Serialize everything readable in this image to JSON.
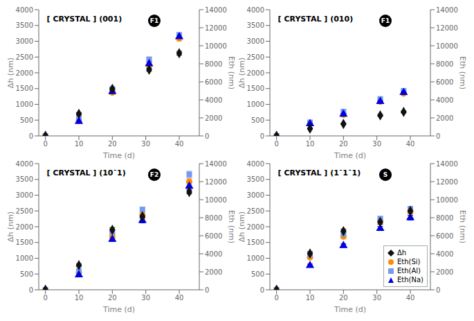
{
  "chart_data": [
    {
      "type": "scatter",
      "title": "[ CRYSTAL ] (001)",
      "annotations": [
        "F1"
      ],
      "xlabel": "Time (d)",
      "ylabel": "Δh (nm)",
      "y2label": "Eth (nm)",
      "x": [
        0,
        10,
        20,
        31,
        40
      ],
      "xlim": [
        -2,
        46
      ],
      "xticks": [
        0,
        10,
        20,
        30,
        40
      ],
      "ylim": [
        0,
        4000
      ],
      "yticks": [
        0,
        500,
        1000,
        1500,
        2000,
        2500,
        3000,
        3500,
        4000
      ],
      "y2lim": [
        0,
        14000
      ],
      "y2ticks": [
        0,
        2000,
        4000,
        6000,
        8000,
        10000,
        12000,
        14000
      ],
      "grid": false,
      "series": [
        {
          "name": "Δh",
          "color": "#111111",
          "marker": "diamond",
          "values": [
            0,
            700,
            1490,
            2100,
            2620
          ],
          "errors": [
            0,
            40,
            40,
            50,
            60
          ]
        },
        {
          "name": "Eth(Si)",
          "color": "#FF8C00",
          "marker": "circle",
          "axis": "y2",
          "values": [
            0,
            1700,
            4800,
            7800,
            10800
          ],
          "errors": [
            0,
            100,
            150,
            200,
            250
          ]
        },
        {
          "name": "Eth(Al)",
          "color": "#7799EE",
          "marker": "square",
          "axis": "y2",
          "values": [
            0,
            1950,
            5200,
            8500,
            11200
          ],
          "errors": [
            0,
            100,
            180,
            200,
            250
          ]
        },
        {
          "name": "Eth(Na)",
          "color": "#0000DD",
          "marker": "triangle",
          "axis": "y2",
          "values": [
            0,
            1600,
            4900,
            8000,
            11000
          ],
          "errors": [
            0,
            100,
            160,
            200,
            280
          ]
        }
      ]
    },
    {
      "type": "scatter",
      "title": "[ CRYSTAL ] (010)",
      "annotations": [
        "F1"
      ],
      "xlabel": "Time (d)",
      "ylabel": "Δh (nm)",
      "y2label": "Eth (nm)",
      "x": [
        0,
        10,
        20,
        31,
        38
      ],
      "xlim": [
        -2,
        46
      ],
      "xticks": [
        0,
        10,
        20,
        30,
        40
      ],
      "ylim": [
        0,
        4000
      ],
      "yticks": [
        0,
        500,
        1000,
        1500,
        2000,
        2500,
        3000,
        3500,
        4000
      ],
      "y2lim": [
        0,
        14000
      ],
      "y2ticks": [
        0,
        2000,
        4000,
        6000,
        8000,
        10000,
        12000,
        14000
      ],
      "grid": false,
      "series": [
        {
          "name": "Δh",
          "color": "#111111",
          "marker": "diamond",
          "values": [
            0,
            230,
            380,
            650,
            760
          ],
          "errors": [
            0,
            20,
            20,
            30,
            30
          ]
        },
        {
          "name": "Eth(Si)",
          "color": "#FF8C00",
          "marker": "circle",
          "axis": "y2",
          "values": [
            0,
            1350,
            2350,
            3800,
            4700
          ],
          "errors": [
            0,
            60,
            100,
            120,
            140
          ]
        },
        {
          "name": "Eth(Al)",
          "color": "#7799EE",
          "marker": "square",
          "axis": "y2",
          "values": [
            0,
            1500,
            2700,
            4100,
            5000
          ],
          "errors": [
            0,
            60,
            120,
            130,
            170
          ]
        },
        {
          "name": "Eth(Na)",
          "color": "#0000DD",
          "marker": "triangle",
          "axis": "y2",
          "values": [
            0,
            1350,
            2400,
            3800,
            4800
          ],
          "errors": [
            0,
            60,
            100,
            120,
            160
          ]
        }
      ]
    },
    {
      "type": "scatter",
      "title": "[ CRYSTAL ] (10¯1)",
      "annotations": [
        "F2"
      ],
      "xlabel": "Time (d)",
      "ylabel": "Δh (nm)",
      "y2label": "Eth (nm)",
      "x": [
        0,
        10,
        20,
        29,
        43
      ],
      "xlim": [
        -2,
        46
      ],
      "xticks": [
        0,
        10,
        20,
        30,
        40
      ],
      "ylim": [
        0,
        4000
      ],
      "yticks": [
        0,
        500,
        1000,
        1500,
        2000,
        2500,
        3000,
        3500,
        4000
      ],
      "y2lim": [
        0,
        14000
      ],
      "y2ticks": [
        0,
        2000,
        4000,
        6000,
        8000,
        10000,
        12000,
        14000
      ],
      "grid": false,
      "series": [
        {
          "name": "Δh",
          "color": "#111111",
          "marker": "diamond",
          "values": [
            0,
            780,
            1900,
            2330,
            3100
          ],
          "errors": [
            0,
            40,
            70,
            60,
            60
          ]
        },
        {
          "name": "Eth(Si)",
          "color": "#FF8C00",
          "marker": "circle",
          "axis": "y2",
          "values": [
            0,
            1900,
            5900,
            8300,
            12000
          ],
          "errors": [
            0,
            100,
            200,
            250,
            300
          ]
        },
        {
          "name": "Eth(Al)",
          "color": "#7799EE",
          "marker": "square",
          "axis": "y2",
          "values": [
            0,
            2100,
            6400,
            8900,
            12800
          ],
          "errors": [
            0,
            120,
            220,
            280,
            350
          ]
        },
        {
          "name": "Eth(Na)",
          "color": "#0000DD",
          "marker": "triangle",
          "axis": "y2",
          "values": [
            0,
            1650,
            5600,
            7700,
            11500
          ],
          "errors": [
            0,
            120,
            220,
            280,
            350
          ]
        }
      ]
    },
    {
      "type": "scatter",
      "title": "[ CRYSTAL ] (1¯1¯1)",
      "annotations": [
        "S"
      ],
      "xlabel": "Time (d)",
      "ylabel": "Δh (nm)",
      "y2label": "Eth (nm)",
      "x": [
        0,
        10,
        20,
        31,
        40
      ],
      "xlim": [
        -2,
        46
      ],
      "xticks": [
        0,
        10,
        20,
        30,
        40
      ],
      "ylim": [
        0,
        4000
      ],
      "yticks": [
        0,
        500,
        1000,
        1500,
        2000,
        2500,
        3000,
        3500,
        4000
      ],
      "y2lim": [
        0,
        14000
      ],
      "y2ticks": [
        0,
        2000,
        4000,
        6000,
        8000,
        10000,
        12000,
        14000
      ],
      "grid": false,
      "legend": "lower right",
      "series": [
        {
          "name": "Δh",
          "color": "#111111",
          "marker": "diamond",
          "values": [
            0,
            1150,
            1860,
            2150,
            2500
          ],
          "errors": [
            0,
            60,
            60,
            70,
            80
          ]
        },
        {
          "name": "Eth(Si)",
          "color": "#FF8C00",
          "marker": "circle",
          "axis": "y2",
          "values": [
            0,
            3600,
            5900,
            7600,
            8700
          ],
          "errors": [
            0,
            150,
            200,
            230,
            260
          ]
        },
        {
          "name": "Eth(Al)",
          "color": "#7799EE",
          "marker": "square",
          "axis": "y2",
          "values": [
            0,
            3900,
            6200,
            7900,
            9000
          ],
          "errors": [
            0,
            150,
            210,
            240,
            270
          ]
        },
        {
          "name": "Eth(Na)",
          "color": "#0000DD",
          "marker": "triangle",
          "axis": "y2",
          "values": [
            0,
            2700,
            4900,
            6800,
            8000
          ],
          "errors": [
            0,
            150,
            200,
            230,
            260
          ]
        }
      ]
    }
  ]
}
